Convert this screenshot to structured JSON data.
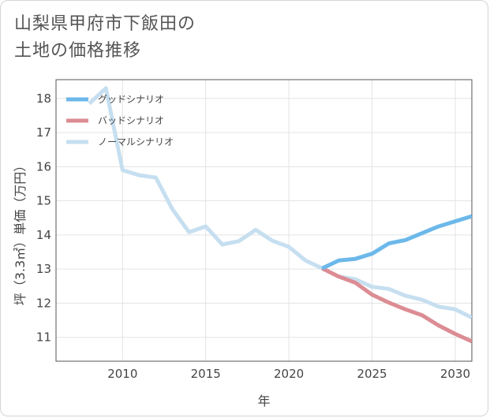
{
  "chart_data": {
    "type": "line",
    "title_lines": [
      "山梨県甲府市下飯田の",
      "土地の価格推移"
    ],
    "xlabel": "年",
    "ylabel": "坪（3.3㎡）単価（万円）",
    "xlim": [
      2006,
      2031
    ],
    "ylim": [
      10.3,
      18.55
    ],
    "x_ticks": [
      2010,
      2015,
      2020,
      2025,
      2030
    ],
    "y_ticks": [
      11,
      12,
      13,
      14,
      15,
      16,
      17,
      18
    ],
    "grid": true,
    "legend_position": "top-left",
    "series": [
      {
        "name": "ノーマルシナリオ",
        "color": "#c6dff0",
        "x": [
          2008,
          2009,
          2010,
          2011,
          2012,
          2013,
          2014,
          2015,
          2016,
          2017,
          2018,
          2019,
          2020,
          2021,
          2022,
          2023,
          2024,
          2025,
          2026,
          2027,
          2028,
          2029,
          2030,
          2031
        ],
        "y": [
          17.85,
          18.3,
          15.9,
          15.75,
          15.68,
          14.75,
          14.08,
          14.25,
          13.72,
          13.82,
          14.15,
          13.83,
          13.65,
          13.25,
          13.02,
          12.78,
          12.7,
          12.48,
          12.42,
          12.22,
          12.1,
          11.9,
          11.82,
          11.58
        ]
      },
      {
        "name": "バッドシナリオ",
        "color": "#dc8c93",
        "x": [
          2022,
          2023,
          2024,
          2025,
          2026,
          2027,
          2028,
          2029,
          2030,
          2031
        ],
        "y": [
          13.02,
          12.78,
          12.6,
          12.25,
          12.02,
          11.82,
          11.65,
          11.35,
          11.1,
          10.88
        ]
      },
      {
        "name": "グッドシナリオ",
        "color": "#6cb8ea",
        "x": [
          2022,
          2023,
          2024,
          2025,
          2026,
          2027,
          2028,
          2029,
          2030,
          2031
        ],
        "y": [
          13.02,
          13.25,
          13.3,
          13.45,
          13.75,
          13.85,
          14.05,
          14.25,
          14.4,
          14.55
        ]
      }
    ],
    "legend": [
      {
        "label": "グッドシナリオ",
        "color": "#6cb8ea"
      },
      {
        "label": "バッドシナリオ",
        "color": "#dc8c93"
      },
      {
        "label": "ノーマルシナリオ",
        "color": "#c6dff0"
      }
    ]
  }
}
